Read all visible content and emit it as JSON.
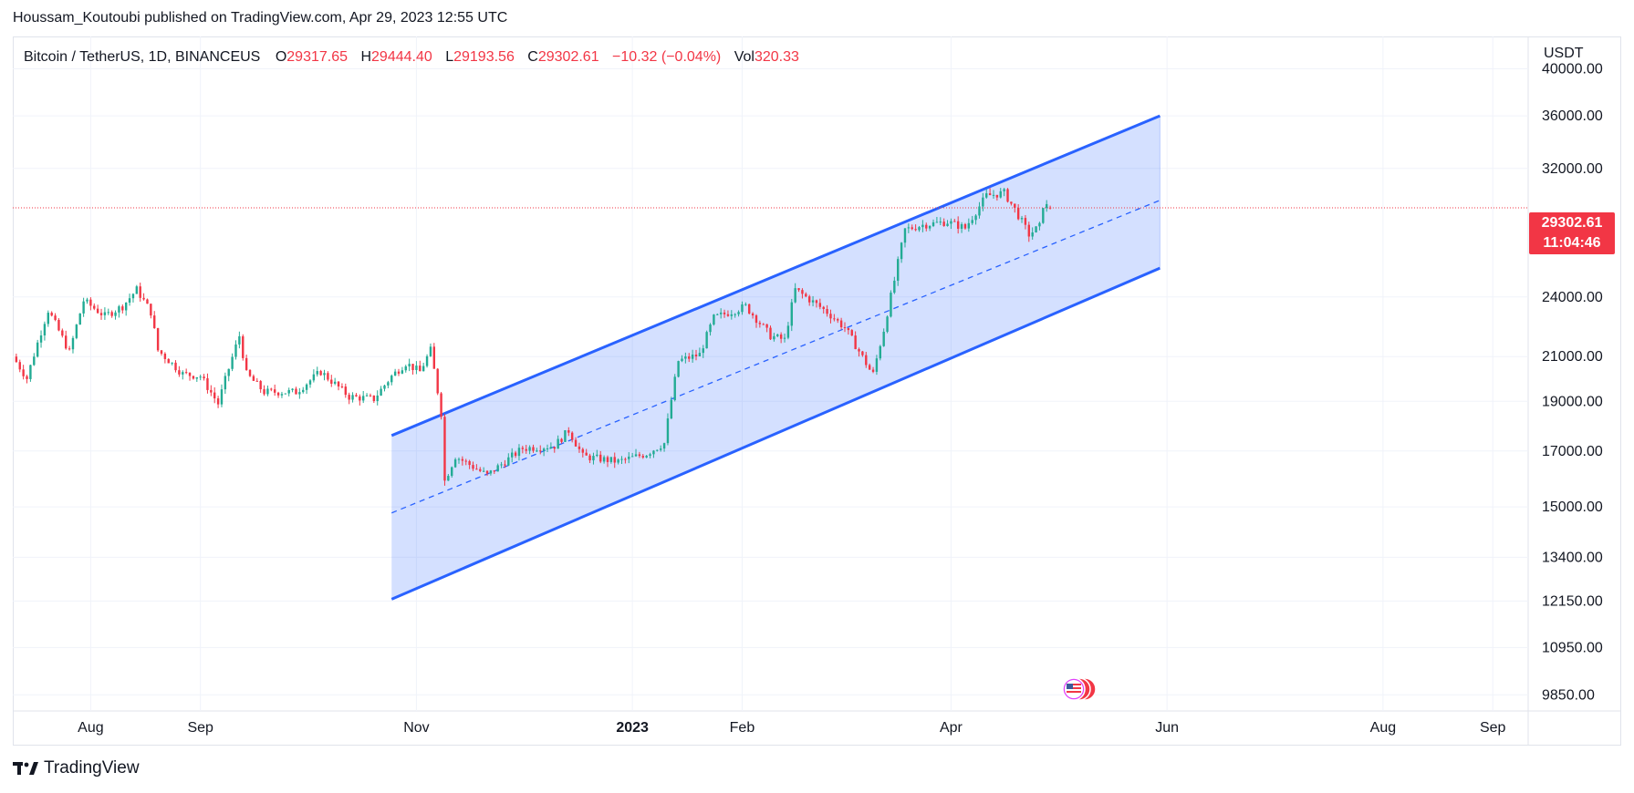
{
  "publisher_line": "Houssam_Koutoubi published on TradingView.com, Apr 29, 2023 12:55 UTC",
  "legend": {
    "symbol": "Bitcoin / TetherUS, 1D, BINANCEUS",
    "open_label": "O",
    "open": "29317.65",
    "high_label": "H",
    "high": "29444.40",
    "low_label": "L",
    "low": "29193.56",
    "close_label": "C",
    "close": "29302.61",
    "change": "−10.32 (−0.04%)",
    "vol_label": "Vol",
    "vol": "320.33"
  },
  "currency": "USDT",
  "last_price": {
    "price": "29302.61",
    "countdown": "11:04:46"
  },
  "brand": "TradingView",
  "colors": {
    "up": "#22ab94",
    "down": "#f23645",
    "channel": "#2962ff",
    "channel_fill": "#2962ff"
  },
  "chart_data": {
    "type": "candlestick",
    "title": "Bitcoin / TetherUS, 1D, BINANCEUS",
    "y_scale": "log",
    "y_ticks": [
      40000,
      36000,
      32000,
      24000,
      21000,
      19000,
      17000,
      15000,
      13400,
      12150,
      10950,
      9850
    ],
    "y_tick_labels": [
      "40000.00",
      "36000.00",
      "32000.00",
      "24000.00",
      "21000.00",
      "19000.00",
      "17000.00",
      "15000.00",
      "13400.00",
      "12150.00",
      "10950.00",
      "9850.00"
    ],
    "ylim": [
      9500,
      43000
    ],
    "x_ticks": [
      {
        "date": "2022-08-01",
        "label": "Aug",
        "bold": false
      },
      {
        "date": "2022-09-01",
        "label": "Sep",
        "bold": false
      },
      {
        "date": "2022-11-01",
        "label": "Nov",
        "bold": false
      },
      {
        "date": "2023-01-01",
        "label": "2023",
        "bold": true
      },
      {
        "date": "2023-02-01",
        "label": "Feb",
        "bold": false
      },
      {
        "date": "2023-04-01",
        "label": "Apr",
        "bold": false
      },
      {
        "date": "2023-06-01",
        "label": "Jun",
        "bold": false
      },
      {
        "date": "2023-08-01",
        "label": "Aug",
        "bold": false
      },
      {
        "date": "2023-09-01",
        "label": "Sep",
        "bold": false
      }
    ],
    "xlim": [
      "2022-07-10",
      "2023-09-11"
    ],
    "price_path": [
      [
        "2022-07-10",
        21000
      ],
      [
        "2022-07-14",
        20000
      ],
      [
        "2022-07-20",
        23300
      ],
      [
        "2022-07-26",
        21200
      ],
      [
        "2022-07-30",
        23800
      ],
      [
        "2022-08-05",
        23000
      ],
      [
        "2022-08-10",
        23500
      ],
      [
        "2022-08-14",
        24400
      ],
      [
        "2022-08-18",
        23200
      ],
      [
        "2022-08-20",
        21300
      ],
      [
        "2022-08-27",
        20200
      ],
      [
        "2022-09-01",
        20100
      ],
      [
        "2022-09-06",
        18900
      ],
      [
        "2022-09-12",
        22000
      ],
      [
        "2022-09-14",
        20200
      ],
      [
        "2022-09-19",
        19400
      ],
      [
        "2022-09-28",
        19400
      ],
      [
        "2022-10-05",
        20300
      ],
      [
        "2022-10-13",
        19200
      ],
      [
        "2022-10-20",
        19100
      ],
      [
        "2022-10-25",
        20100
      ],
      [
        "2022-10-29",
        20700
      ],
      [
        "2022-11-02",
        20300
      ],
      [
        "2022-11-05",
        21300
      ],
      [
        "2022-11-08",
        18500
      ],
      [
        "2022-11-09",
        15900
      ],
      [
        "2022-11-12",
        16800
      ],
      [
        "2022-11-21",
        16100
      ],
      [
        "2022-11-25",
        16500
      ],
      [
        "2022-12-01",
        17100
      ],
      [
        "2022-12-10",
        17200
      ],
      [
        "2022-12-14",
        17800
      ],
      [
        "2022-12-18",
        16800
      ],
      [
        "2022-12-28",
        16600
      ],
      [
        "2023-01-05",
        16900
      ],
      [
        "2023-01-10",
        17300
      ],
      [
        "2023-01-14",
        20800
      ],
      [
        "2023-01-20",
        21100
      ],
      [
        "2023-01-24",
        22900
      ],
      [
        "2023-02-02",
        23500
      ],
      [
        "2023-02-09",
        22000
      ],
      [
        "2023-02-13",
        21800
      ],
      [
        "2023-02-16",
        24400
      ],
      [
        "2023-02-25",
        23200
      ],
      [
        "2023-03-02",
        22400
      ],
      [
        "2023-03-09",
        20400
      ],
      [
        "2023-03-10",
        20200
      ],
      [
        "2023-03-13",
        22300
      ],
      [
        "2023-03-16",
        24900
      ],
      [
        "2023-03-19",
        27900
      ],
      [
        "2023-03-24",
        28200
      ],
      [
        "2023-03-31",
        28400
      ],
      [
        "2023-04-05",
        28000
      ],
      [
        "2023-04-11",
        30100
      ],
      [
        "2023-04-16",
        30300
      ],
      [
        "2023-04-19",
        29200
      ],
      [
        "2023-04-23",
        27600
      ],
      [
        "2023-04-26",
        28100
      ],
      [
        "2023-04-27",
        29500
      ],
      [
        "2023-04-29",
        29302.61
      ]
    ],
    "last_candle": {
      "date": "2023-04-29",
      "open": 29317.65,
      "high": 29444.4,
      "low": 29193.56,
      "close": 29302.61,
      "volume": 320.33
    },
    "channel": {
      "start_date": "2022-10-25",
      "end_date": "2023-05-30",
      "upper": [
        17600,
        36000
      ],
      "mid": [
        14800,
        29800
      ],
      "lower": [
        12200,
        25600
      ]
    }
  }
}
